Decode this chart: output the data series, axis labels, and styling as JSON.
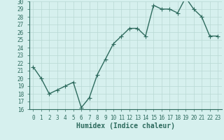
{
  "x": [
    0,
    1,
    2,
    3,
    4,
    5,
    6,
    7,
    8,
    9,
    10,
    11,
    12,
    13,
    14,
    15,
    16,
    17,
    18,
    19,
    20,
    21,
    22,
    23
  ],
  "y": [
    21.5,
    20.0,
    18.0,
    18.5,
    19.0,
    19.5,
    16.2,
    17.5,
    20.5,
    22.5,
    24.5,
    25.5,
    26.5,
    26.5,
    25.5,
    29.5,
    29.0,
    29.0,
    28.5,
    30.5,
    29.0,
    28.0,
    25.5,
    25.5
  ],
  "xlabel": "Humidex (Indice chaleur)",
  "line_color": "#2e6b5e",
  "marker": "+",
  "bg_color": "#d6f0ee",
  "grid_color": "#b8d8d4",
  "ylim": [
    16,
    30
  ],
  "xlim_min": -0.5,
  "xlim_max": 23.5,
  "yticks": [
    16,
    17,
    18,
    19,
    20,
    21,
    22,
    23,
    24,
    25,
    26,
    27,
    28,
    29,
    30
  ],
  "xticks": [
    0,
    1,
    2,
    3,
    4,
    5,
    6,
    7,
    8,
    9,
    10,
    11,
    12,
    13,
    14,
    15,
    16,
    17,
    18,
    19,
    20,
    21,
    22,
    23
  ],
  "tick_fontsize": 5.5,
  "xlabel_fontsize": 7,
  "line_width": 1.0,
  "marker_size": 4
}
